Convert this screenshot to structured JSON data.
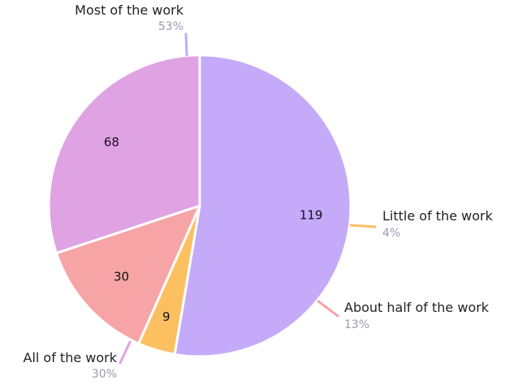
{
  "chart_data": {
    "type": "pie",
    "slices": [
      {
        "category": "Most of the work",
        "value": 119,
        "percent": "53%",
        "color": "#c4aaf9"
      },
      {
        "category": "Little of the work",
        "value": 9,
        "percent": "4%",
        "color": "#fdc061"
      },
      {
        "category": "About half of the work",
        "value": 30,
        "percent": "13%",
        "color": "#f7a4a6"
      },
      {
        "category": "All of the work",
        "value": 68,
        "percent": "30%",
        "color": "#dfa3e3"
      }
    ]
  }
}
